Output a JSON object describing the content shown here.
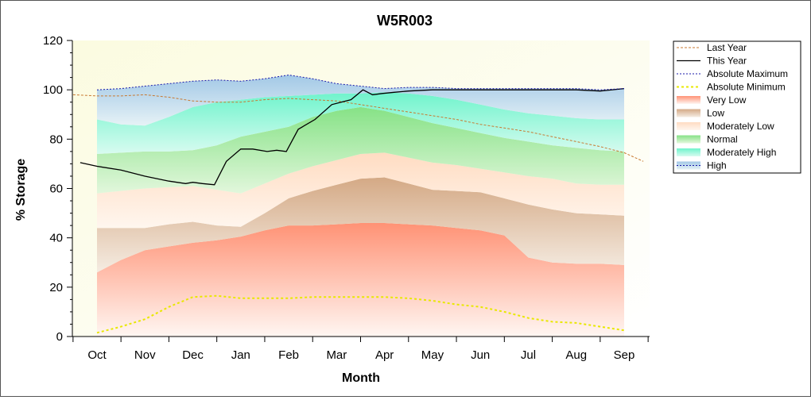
{
  "chart_data": {
    "type": "area",
    "title": "W5R003",
    "xlabel": "Month",
    "ylabel": "% Storage",
    "ylim": [
      0,
      120
    ],
    "yticks": [
      0,
      20,
      40,
      60,
      80,
      100,
      120
    ],
    "month_labels": [
      "Oct",
      "Nov",
      "Dec",
      "Jan",
      "Feb",
      "Mar",
      "Apr",
      "May",
      "Jun",
      "Jul",
      "Aug",
      "Sep"
    ],
    "legend_position": "right",
    "grid": false,
    "band_boundaries": {
      "x": [
        0,
        0.5,
        1,
        1.5,
        2,
        2.5,
        3,
        3.5,
        4,
        4.5,
        5,
        5.5,
        6,
        6.5,
        7,
        7.5,
        8,
        8.5,
        9,
        9.5,
        10,
        10.5,
        11
      ],
      "very_low_top": [
        26,
        31,
        35,
        36.5,
        38,
        39,
        40.5,
        43,
        45,
        45,
        45.5,
        46,
        46,
        45.5,
        45,
        44,
        43,
        41,
        32,
        30,
        29.5,
        29.5,
        29
      ],
      "low_top": [
        44,
        44,
        44,
        45.5,
        46.5,
        45,
        44.5,
        50,
        56,
        59,
        61.5,
        64,
        64.5,
        62,
        59.5,
        59,
        58.5,
        56,
        53.5,
        51.5,
        50,
        49.5,
        49
      ],
      "moderately_low_top": [
        58,
        59,
        60,
        60.5,
        61,
        59.5,
        58,
        62,
        66,
        69,
        71.5,
        74,
        74.5,
        72.5,
        70.5,
        69.5,
        68,
        66.5,
        65,
        64,
        62,
        61.5,
        61.5
      ],
      "normal_top": [
        74,
        74.5,
        75,
        75,
        75.5,
        77.5,
        81,
        83,
        85,
        89,
        91.5,
        93,
        91.5,
        89,
        86.5,
        84.5,
        82.5,
        80.5,
        79,
        77.5,
        76.5,
        75.5,
        75
      ],
      "moderately_high_top": [
        88,
        86,
        85.5,
        89,
        93,
        95,
        96,
        97,
        97.5,
        98,
        98.5,
        98.5,
        99,
        98.5,
        97.5,
        96,
        94,
        92,
        90.5,
        89.5,
        88.5,
        88,
        88
      ],
      "high_top": [
        100,
        100.5,
        101.5,
        102.5,
        103.5,
        104,
        103.5,
        104.5,
        106,
        104.5,
        102.5,
        101.5,
        100.5,
        101,
        101,
        100.5,
        100.5,
        100.5,
        100.5,
        100.5,
        100.5,
        100,
        100.5
      ]
    },
    "series": [
      {
        "name": "Last Year",
        "color": "#c87830",
        "x": [
          -0.5,
          0,
          0.5,
          1,
          1.5,
          2,
          2.5,
          3,
          3.5,
          4,
          4.5,
          5,
          5.5,
          6,
          6.5,
          7,
          7.5,
          8,
          8.5,
          9,
          9.5,
          10,
          10.5,
          11,
          11.4
        ],
        "y": [
          98,
          97.5,
          97.5,
          98,
          97,
          95.5,
          95,
          95,
          96,
          96.5,
          96,
          95.5,
          94,
          92.5,
          91,
          89.5,
          88,
          86,
          84.5,
          83,
          81,
          79,
          77,
          74.5,
          71
        ]
      },
      {
        "name": "This Year",
        "color": "#000000",
        "x": [
          -0.35,
          0,
          0.5,
          1,
          1.5,
          1.85,
          2,
          2.2,
          2.45,
          2.7,
          3,
          3.25,
          3.55,
          3.75,
          3.95,
          4.2,
          4.55,
          4.9,
          5.3,
          5.55,
          5.75,
          5.95,
          6.2,
          6.5,
          7,
          7.5,
          8,
          8.5,
          9,
          9.5,
          10,
          10.5,
          11
        ],
        "y": [
          70.5,
          69,
          67.5,
          65,
          63,
          62,
          62.5,
          62,
          61.5,
          71,
          76,
          76,
          75,
          75.5,
          75,
          84,
          88,
          94,
          96,
          100,
          98,
          98.5,
          99,
          99.5,
          100,
          100,
          100,
          100,
          100,
          100,
          100,
          99.5,
          100.5
        ]
      },
      {
        "name": "Absolute Maximum",
        "color": "#1a1aaa",
        "x": [
          0,
          0.5,
          1,
          1.5,
          2,
          2.5,
          3,
          3.5,
          4,
          4.5,
          5,
          5.5,
          6,
          6.5,
          7,
          7.5,
          8,
          8.5,
          9,
          9.5,
          10,
          10.5,
          11
        ],
        "y": [
          100,
          100.5,
          101.5,
          102.5,
          103.5,
          104,
          103.5,
          104.5,
          106,
          104.5,
          102.5,
          101.5,
          100.5,
          101,
          101,
          100.5,
          100.5,
          100.5,
          100.5,
          100.5,
          100.5,
          100,
          100.5
        ]
      },
      {
        "name": "Absolute Minimum",
        "color": "#e8e800",
        "x": [
          0,
          0.5,
          1,
          1.5,
          2,
          2.5,
          3,
          3.5,
          4,
          4.5,
          5,
          5.5,
          6,
          6.5,
          7,
          7.5,
          8,
          8.5,
          9,
          9.5,
          10,
          10.5,
          11
        ],
        "y": [
          1.5,
          4,
          7,
          12,
          16,
          16.5,
          15.5,
          15.5,
          15.5,
          16,
          16,
          16,
          16,
          15.5,
          14.5,
          13,
          12,
          10,
          7.5,
          6,
          5.5,
          4,
          2.5
        ]
      }
    ],
    "bands": [
      {
        "name": "Very Low",
        "color": "#ff9c80"
      },
      {
        "name": "Low",
        "color": "#d9b48f"
      },
      {
        "name": "Moderately Low",
        "color": "#ffe0c8"
      },
      {
        "name": "Normal",
        "color": "#8ee68e"
      },
      {
        "name": "Moderately High",
        "color": "#7ef5d0"
      },
      {
        "name": "High",
        "color": "#a9cfe8"
      }
    ],
    "legend": [
      "Last Year",
      "This Year",
      "Absolute Maximum",
      "Absolute Minimum",
      "Very Low",
      "Low",
      "Moderately Low",
      "Normal",
      "Moderately High",
      "High"
    ],
    "plot_background": "#fbfbe0"
  }
}
